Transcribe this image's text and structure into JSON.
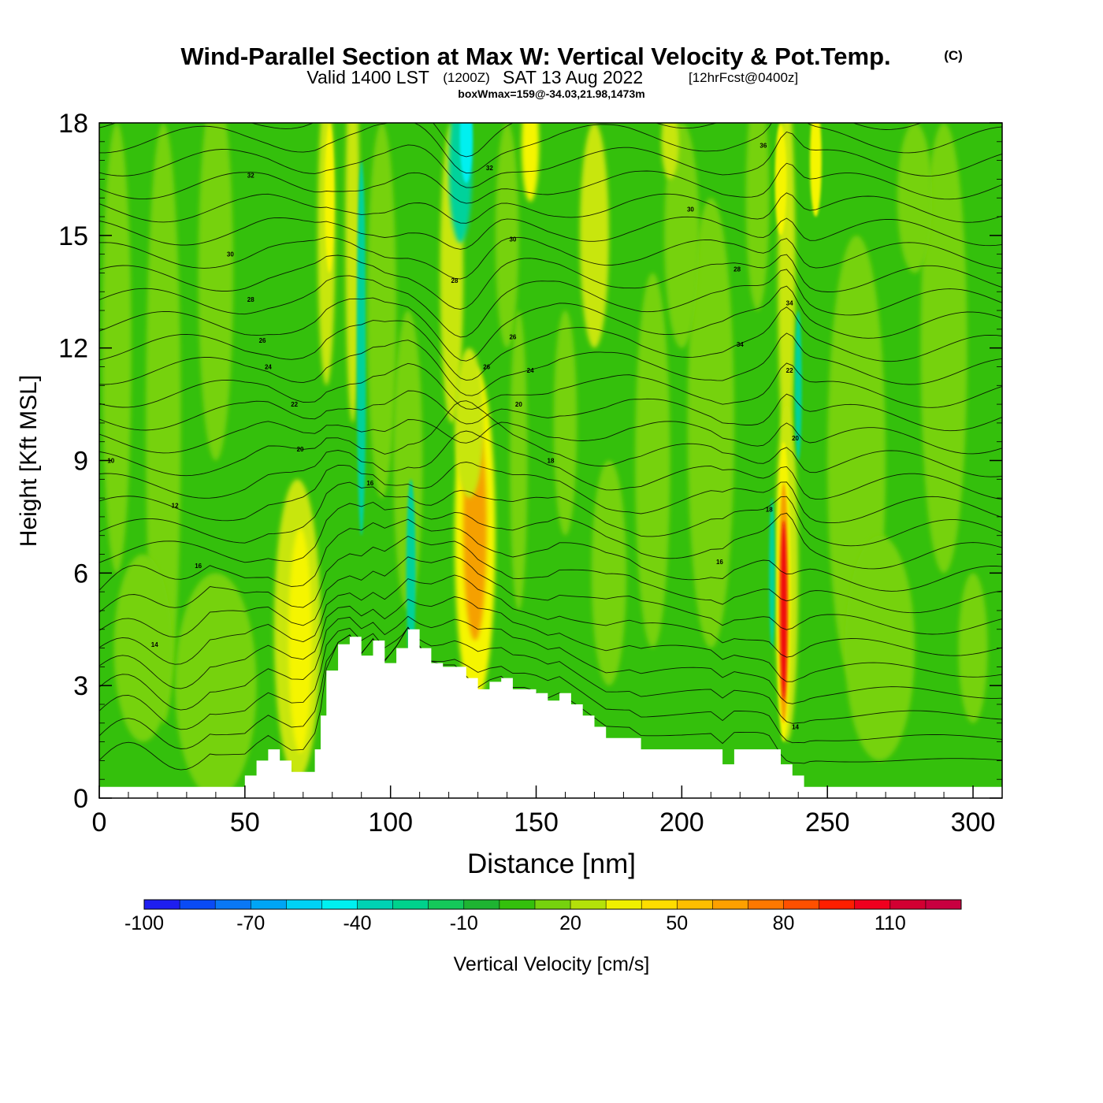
{
  "header": {
    "title": "Wind-Parallel Section at Max W: Vertical Velocity & Pot.Temp.",
    "copyright": "(C)",
    "valid_prefix": "Valid 1400 LST",
    "valid_utc": "(1200Z)",
    "valid_date": "SAT 13 Aug 2022",
    "forecast": "[12hrFcst@0400z]",
    "boxwmax": "boxWmax=159@-34.03,21.98,1473m"
  },
  "colors": {
    "base_green": "#34c00c",
    "light_green": "#76d20e",
    "yellow_green": "#c8e60a",
    "yellow": "#f5f500",
    "orange": "#f5a000",
    "red": "#f01010",
    "aqua": "#00d29b",
    "cyan": "#00f0f0",
    "terrain": "#ffffff",
    "contour": "#000000"
  },
  "chart_data": {
    "type": "heatmap",
    "title": "Wind-Parallel Section at Max W: Vertical Velocity & Pot.Temp.",
    "xlabel": "Distance [nm]",
    "ylabel": "Height [Kft MSL]",
    "xlim": [
      0,
      310
    ],
    "ylim": [
      0,
      18
    ],
    "x_ticks": [
      0,
      50,
      100,
      150,
      200,
      250,
      300
    ],
    "y_ticks": [
      0,
      3,
      6,
      9,
      12,
      15,
      18
    ],
    "colorbar": {
      "label": "Vertical Velocity [cm/s]",
      "min": -100,
      "max": 130,
      "step": 10,
      "tick_values": [
        -100,
        -70,
        -40,
        -10,
        20,
        50,
        80,
        110
      ],
      "tick_labels": [
        "-100",
        "-70",
        "-40",
        "-10",
        "20",
        "50",
        "80",
        "110"
      ],
      "colors": [
        "#1e1ef0",
        "#0a4bf5",
        "#0a78f5",
        "#00a5f5",
        "#00d2f5",
        "#00f0f0",
        "#00d2b4",
        "#00d28c",
        "#14c85a",
        "#1eb432",
        "#34c00c",
        "#76d20e",
        "#b4e10a",
        "#f0f000",
        "#ffdc00",
        "#ffbe00",
        "#ffa000",
        "#ff7800",
        "#ff5000",
        "#ff1e00",
        "#f0001e",
        "#d20032",
        "#c80040"
      ]
    },
    "updraft_max": {
      "x_nm": 235,
      "z_kft": 5.2,
      "w_cm_s": 159
    },
    "terrain": {
      "x_nm": [
        0,
        50,
        54,
        58,
        62,
        66,
        70,
        74,
        76,
        78,
        82,
        86,
        90,
        94,
        98,
        102,
        106,
        110,
        114,
        118,
        122,
        126,
        130,
        134,
        138,
        142,
        146,
        150,
        154,
        158,
        162,
        166,
        170,
        174,
        178,
        182,
        186,
        190,
        200,
        210,
        214,
        218,
        222,
        226,
        230,
        234,
        238,
        242,
        246,
        250,
        260,
        270,
        280,
        290,
        300,
        310
      ],
      "z_kft": [
        0.3,
        0.6,
        1.0,
        1.3,
        1.0,
        0.7,
        0.7,
        1.3,
        2.2,
        3.4,
        4.1,
        4.3,
        3.8,
        4.2,
        3.6,
        4.0,
        4.5,
        4.0,
        3.6,
        3.5,
        3.5,
        3.2,
        2.9,
        3.1,
        3.2,
        2.9,
        2.9,
        2.8,
        2.6,
        2.8,
        2.5,
        2.2,
        1.9,
        1.6,
        1.6,
        1.6,
        1.3,
        1.3,
        1.3,
        1.3,
        0.9,
        1.3,
        1.3,
        1.3,
        1.3,
        0.9,
        0.6,
        0.3,
        0.3,
        0.3,
        0.3,
        0.3,
        0.3,
        0.3,
        0.3,
        0.3
      ]
    },
    "theta_contours": {
      "labels": [
        {
          "text": "10",
          "x_nm": 4,
          "z_kft": 9.0
        },
        {
          "text": "12",
          "x_nm": 26,
          "z_kft": 7.8
        },
        {
          "text": "14",
          "x_nm": 19,
          "z_kft": 4.1
        },
        {
          "text": "16",
          "x_nm": 34,
          "z_kft": 6.2
        },
        {
          "text": "20",
          "x_nm": 69,
          "z_kft": 9.3
        },
        {
          "text": "22",
          "x_nm": 67,
          "z_kft": 10.5
        },
        {
          "text": "24",
          "x_nm": 58,
          "z_kft": 11.5
        },
        {
          "text": "26",
          "x_nm": 56,
          "z_kft": 12.2
        },
        {
          "text": "28",
          "x_nm": 52,
          "z_kft": 13.3
        },
        {
          "text": "30",
          "x_nm": 45,
          "z_kft": 14.5
        },
        {
          "text": "32",
          "x_nm": 52,
          "z_kft": 16.6
        },
        {
          "text": "16",
          "x_nm": 93,
          "z_kft": 8.4
        },
        {
          "text": "28",
          "x_nm": 122,
          "z_kft": 13.8
        },
        {
          "text": "26",
          "x_nm": 133,
          "z_kft": 11.5
        },
        {
          "text": "20",
          "x_nm": 144,
          "z_kft": 10.5
        },
        {
          "text": "18",
          "x_nm": 155,
          "z_kft": 9.0
        },
        {
          "text": "24",
          "x_nm": 148,
          "z_kft": 11.4
        },
        {
          "text": "26",
          "x_nm": 142,
          "z_kft": 12.3
        },
        {
          "text": "30",
          "x_nm": 142,
          "z_kft": 14.9
        },
        {
          "text": "32",
          "x_nm": 134,
          "z_kft": 16.8
        },
        {
          "text": "30",
          "x_nm": 203,
          "z_kft": 15.7
        },
        {
          "text": "28",
          "x_nm": 219,
          "z_kft": 14.1
        },
        {
          "text": "34",
          "x_nm": 220,
          "z_kft": 12.1
        },
        {
          "text": "16",
          "x_nm": 213,
          "z_kft": 6.3
        },
        {
          "text": "18",
          "x_nm": 230,
          "z_kft": 7.7
        },
        {
          "text": "20",
          "x_nm": 239,
          "z_kft": 9.6
        },
        {
          "text": "22",
          "x_nm": 237,
          "z_kft": 11.4
        },
        {
          "text": "34",
          "x_nm": 237,
          "z_kft": 13.2
        },
        {
          "text": "36",
          "x_nm": 228,
          "z_kft": 17.4
        },
        {
          "text": "14",
          "x_nm": 239,
          "z_kft": 1.9
        }
      ]
    }
  }
}
